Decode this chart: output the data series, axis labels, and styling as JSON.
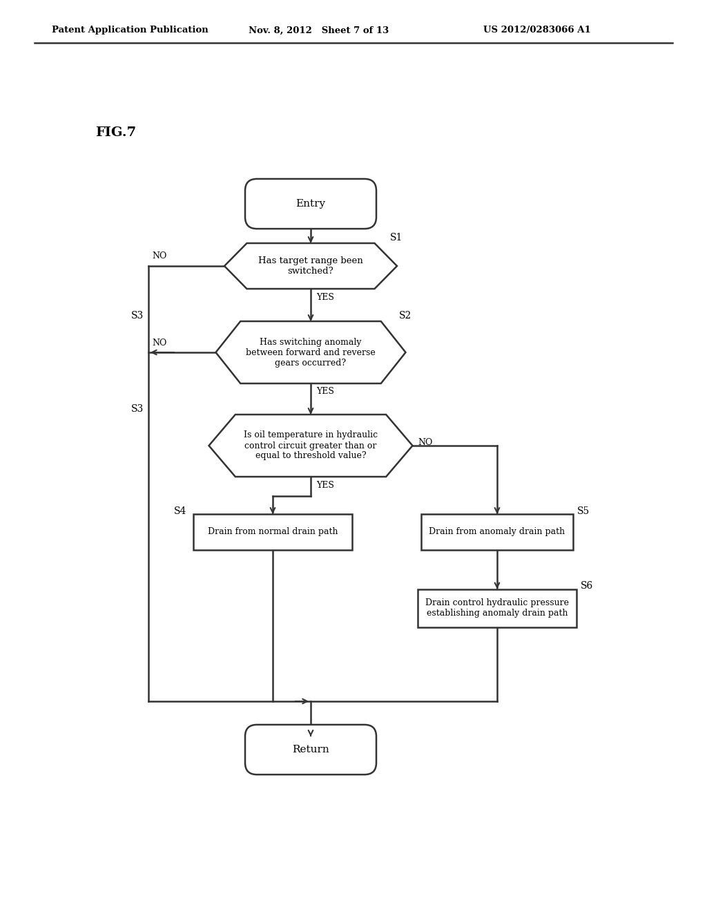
{
  "bg_color": "#ffffff",
  "header_left": "Patent Application Publication",
  "header_mid": "Nov. 8, 2012   Sheet 7 of 13",
  "header_right": "US 2012/0283066 A1",
  "fig_label": "FIG.7",
  "entry_text": "Entry",
  "return_text": "Return",
  "s1_text": "Has target range been\nswitched?",
  "s2_text": "Has switching anomaly\nbetween forward and reverse\ngears occurred?",
  "s3_text": "Is oil temperature in hydraulic\ncontrol circuit greater than or\nequal to threshold value?",
  "s4_text": "Drain from normal drain path",
  "s5_text": "Drain from anomaly drain path",
  "s6_text": "Drain control hydraulic pressure\nestablishing anomaly drain path",
  "yes": "YES",
  "no": "NO",
  "s1": "S1",
  "s2": "S2",
  "s3": "S3",
  "s4": "S4",
  "s5": "S5",
  "s6": "S6"
}
